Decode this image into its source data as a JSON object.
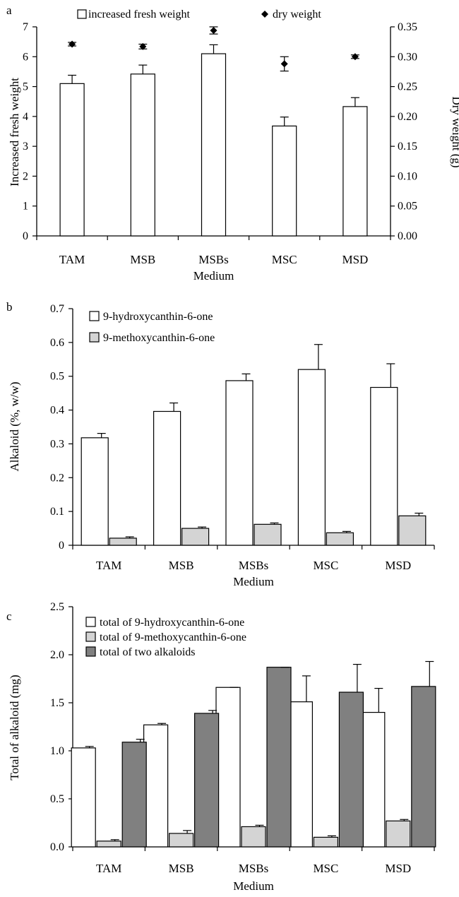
{
  "panel_labels": [
    "a",
    "b",
    "c"
  ],
  "colors": {
    "open_bar": "#ffffff",
    "light_bar": "#d4d4d4",
    "dark_bar": "#808080",
    "dry_marker": "#000000",
    "stroke": "#000000"
  },
  "chart_data": [
    {
      "type": "bar",
      "panel": "a",
      "categories": [
        "TAM",
        "MSB",
        "MSBs",
        "MSC",
        "MSD"
      ],
      "xlabel": "Medium",
      "ylabel": "Increased fresh weight",
      "ylabel_right": "Dry weight (g)",
      "ylim": [
        0,
        7
      ],
      "yticks": [
        "0",
        "1",
        "2",
        "3",
        "4",
        "5",
        "6",
        "7"
      ],
      "y2lim": [
        0,
        0.35
      ],
      "y2ticks": [
        "0.00",
        "0.05",
        "0.10",
        "0.15",
        "0.20",
        "0.25",
        "0.30",
        "0.35"
      ],
      "legend_position": "top",
      "series": [
        {
          "name": "increased fresh weight",
          "style": "bar",
          "axis": "left",
          "values": [
            5.1,
            5.42,
            6.1,
            3.68,
            4.33
          ],
          "errors": [
            0.28,
            0.3,
            0.3,
            0.3,
            0.3
          ]
        },
        {
          "name": "dry weight",
          "style": "marker",
          "axis": "right",
          "values": [
            0.321,
            0.317,
            0.344,
            0.288,
            0.3
          ],
          "errors": [
            0.003,
            0.004,
            0.006,
            0.012,
            0.003
          ]
        }
      ]
    },
    {
      "type": "bar",
      "panel": "b",
      "categories": [
        "TAM",
        "MSB",
        "MSBs",
        "MSC",
        "MSD"
      ],
      "xlabel": "Medium",
      "ylabel": "Alkaloid (%, w/w)",
      "ylim": [
        0,
        0.7
      ],
      "yticks": [
        "0",
        "0.1",
        "0.2",
        "0.3",
        "0.4",
        "0.5",
        "0.6",
        "0.7"
      ],
      "legend_position": "top-left",
      "series": [
        {
          "name": "9-hydroxycanthin-6-one",
          "values": [
            0.318,
            0.396,
            0.487,
            0.52,
            0.467
          ],
          "errors": [
            0.013,
            0.025,
            0.02,
            0.074,
            0.07
          ]
        },
        {
          "name": "9-methoxycanthin-6-one",
          "values": [
            0.021,
            0.05,
            0.062,
            0.037,
            0.087
          ],
          "errors": [
            0.004,
            0.004,
            0.004,
            0.004,
            0.008
          ]
        }
      ]
    },
    {
      "type": "bar",
      "panel": "c",
      "categories": [
        "TAM",
        "MSB",
        "MSBs",
        "MSC",
        "MSD"
      ],
      "xlabel": "Medium",
      "ylabel": "Total of alkaloid (mg)",
      "ylim": [
        0,
        2.5
      ],
      "yticks": [
        "0.0",
        "0.5",
        "1.0",
        "1.5",
        "2.0",
        "2.5"
      ],
      "legend_position": "top-left",
      "series": [
        {
          "name": "total of 9-hydroxycanthin-6-one",
          "values": [
            1.03,
            1.27,
            1.66,
            1.51,
            1.4
          ],
          "errors": [
            0.015,
            0.015,
            0.0,
            0.27,
            0.25
          ]
        },
        {
          "name": "total of 9-methoxycanthin-6-one",
          "values": [
            0.06,
            0.14,
            0.21,
            0.1,
            0.27
          ],
          "errors": [
            0.015,
            0.03,
            0.015,
            0.015,
            0.015
          ]
        },
        {
          "name": "total of two alkaloids",
          "values": [
            1.09,
            1.39,
            1.87,
            1.61,
            1.67
          ],
          "errors": [
            0.03,
            0.03,
            0.0,
            0.29,
            0.26
          ]
        }
      ]
    }
  ]
}
